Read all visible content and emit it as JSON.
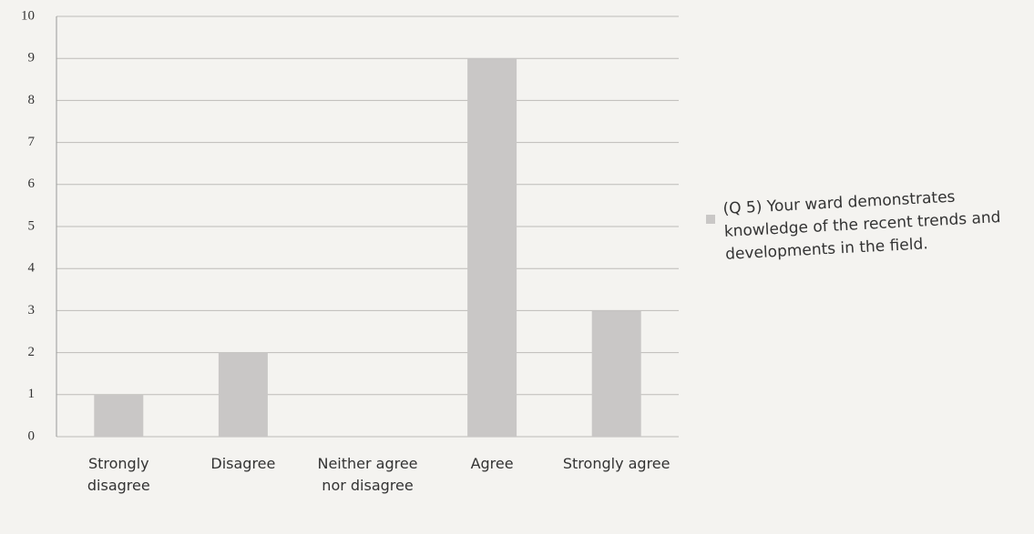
{
  "chart_data": {
    "type": "bar",
    "categories": [
      "Strongly disagree",
      "Disagree",
      "Neither agree nor disagree",
      "Agree",
      "Strongly agree"
    ],
    "series": [
      {
        "name": "(Q 5) Your ward demonstrates knowledge of the recent trends and developments in the field.",
        "color": "#c9c7c6",
        "values": [
          1,
          2,
          0,
          9,
          3
        ]
      }
    ],
    "ylim": [
      0,
      10
    ],
    "yticks": [
      0,
      1,
      2,
      3,
      4,
      5,
      6,
      7,
      8,
      9,
      10
    ],
    "grid": true,
    "legend": "right"
  }
}
